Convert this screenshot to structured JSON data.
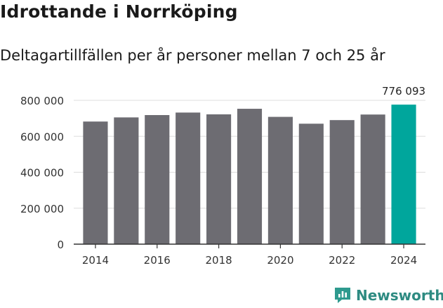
{
  "title": "Idrottande i Norrköping",
  "subtitle": "Deltagartillfällen per år personer mellan 7 och 25 år",
  "brand": {
    "name": "Newsworthy",
    "icon": "bar-chart-speech-icon",
    "color": "#2e9a8e"
  },
  "chart_data": {
    "type": "bar",
    "categories": [
      "2014",
      "2015",
      "2016",
      "2017",
      "2018",
      "2019",
      "2020",
      "2021",
      "2022",
      "2023",
      "2024"
    ],
    "values": [
      682000,
      705000,
      718000,
      732000,
      722000,
      753000,
      708000,
      670000,
      690000,
      721000,
      776093
    ],
    "highlight_index": 10,
    "highlight_label": "776 093",
    "ylim": [
      0,
      800000
    ],
    "yticks": [
      0,
      200000,
      400000,
      600000,
      800000
    ],
    "ytick_labels": [
      "0",
      "200 000",
      "400 000",
      "600 000",
      "800 000"
    ],
    "xtick_labels": [
      "2014",
      "2016",
      "2018",
      "2020",
      "2022",
      "2024"
    ],
    "xtick_years": [
      "2014",
      "2016",
      "2018",
      "2020",
      "2022",
      "2024"
    ],
    "grid": true,
    "colors": {
      "bar": "#6d6c72",
      "highlight": "#00a69c",
      "grid": "#dddddd",
      "axis": "#333333"
    },
    "xlabel": "",
    "ylabel": ""
  }
}
